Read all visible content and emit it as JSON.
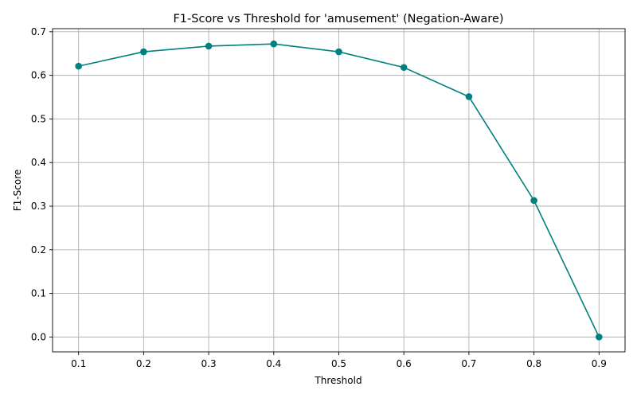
{
  "chart_data": {
    "type": "line",
    "title": "F1-Score vs Threshold for 'amusement' (Negation-Aware)",
    "xlabel": "Threshold",
    "ylabel": "F1-Score",
    "x": [
      0.1,
      0.2,
      0.3,
      0.4,
      0.5,
      0.6,
      0.7,
      0.8,
      0.9
    ],
    "x_tick_labels": [
      "0.1",
      "0.2",
      "0.3",
      "0.4",
      "0.5",
      "0.6",
      "0.7",
      "0.8",
      "0.9"
    ],
    "y_ticks": [
      0.0,
      0.1,
      0.2,
      0.3,
      0.4,
      0.5,
      0.6,
      0.7
    ],
    "y_tick_labels": [
      "0.0",
      "0.1",
      "0.2",
      "0.3",
      "0.4",
      "0.5",
      "0.6",
      "0.7"
    ],
    "xlim": [
      0.06,
      0.94
    ],
    "ylim": [
      -0.034,
      0.707
    ],
    "grid": true,
    "marker": "circle",
    "series": [
      {
        "values": [
          0.621,
          0.654,
          0.667,
          0.672,
          0.654,
          0.618,
          0.551,
          0.313,
          0.0
        ],
        "color": "#008080"
      }
    ]
  }
}
